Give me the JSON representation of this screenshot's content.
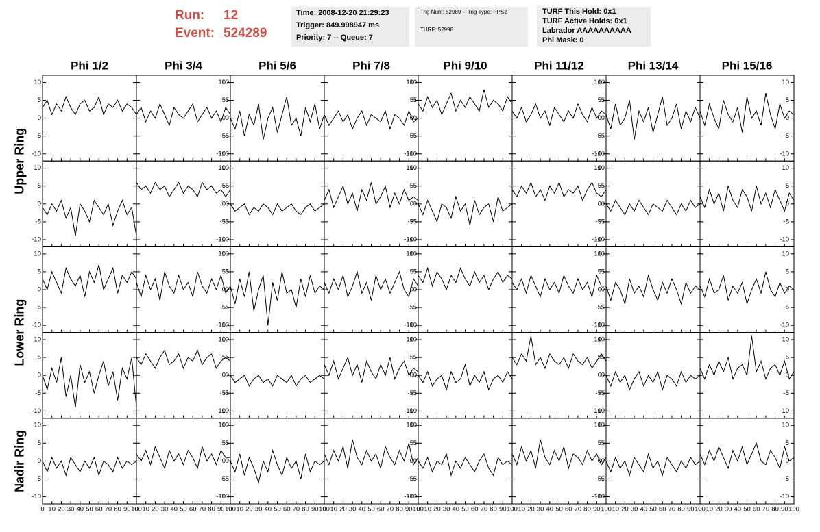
{
  "header": {
    "run_label": "Run:",
    "run": "12",
    "event_label": "Event:",
    "event": "524289",
    "box1": [
      "Time: 2008-12-20 21:29:23",
      "Trigger: 849.998947 ms",
      "Priority: 7 -- Queue: 7"
    ],
    "box2": [
      "Trig Num: 52989 -- Trig Type: PPS2",
      "TURF: 52998"
    ],
    "box3": [
      "TURF This Hold: 0x1",
      "TURF Active Holds: 0x1",
      "Labrador AAAAAAAAAA",
      "Phi Mask: 0"
    ]
  },
  "chart_data": {
    "type": "line",
    "columns": [
      "Phi 1/2",
      "Phi 3/4",
      "Phi 5/6",
      "Phi 7/8",
      "Phi 9/10",
      "Phi 11/12",
      "Phi 13/14",
      "Phi 15/16"
    ],
    "row_labels": [
      "Upper Ring",
      "Lower Ring",
      "Nadir Ring"
    ],
    "x": [
      0,
      5,
      10,
      15,
      20,
      25,
      30,
      35,
      40,
      45,
      50,
      55,
      60,
      65,
      70,
      75,
      80,
      85,
      90,
      95,
      100
    ],
    "xlim": [
      0,
      100
    ],
    "xticks": [
      0,
      10,
      20,
      30,
      40,
      50,
      60,
      70,
      80,
      90,
      100
    ],
    "ylim": [
      -12,
      12
    ],
    "yticks": [
      -10,
      -5,
      0,
      5,
      10
    ],
    "color": "#000000",
    "panels": [
      [
        3,
        5,
        1,
        4,
        2,
        6,
        3,
        1,
        4,
        5,
        2,
        3,
        6,
        1,
        4,
        3,
        5,
        2,
        4,
        3,
        1
      ],
      [
        1,
        3,
        -1,
        2,
        0,
        4,
        1,
        -2,
        3,
        1,
        0,
        2,
        4,
        -1,
        1,
        3,
        0,
        2,
        -1,
        3,
        1
      ],
      [
        0,
        -3,
        2,
        -5,
        1,
        -2,
        4,
        -6,
        0,
        3,
        -4,
        1,
        6,
        -2,
        0,
        -5,
        3,
        -1,
        4,
        -3,
        1
      ],
      [
        1,
        -2,
        0,
        2,
        -1,
        1,
        -3,
        0,
        2,
        -2,
        1,
        0,
        -1,
        2,
        -3,
        1,
        0,
        -2,
        2,
        -1,
        0
      ],
      [
        4,
        2,
        6,
        3,
        5,
        1,
        4,
        7,
        2,
        5,
        3,
        6,
        4,
        2,
        8,
        3,
        5,
        4,
        2,
        6,
        4
      ],
      [
        2,
        0,
        3,
        -1,
        1,
        4,
        0,
        2,
        -2,
        3,
        1,
        -1,
        2,
        0,
        4,
        1,
        -1,
        3,
        0,
        2,
        1
      ],
      [
        1,
        -3,
        4,
        -2,
        0,
        5,
        -6,
        2,
        -1,
        3,
        -4,
        1,
        6,
        -2,
        0,
        4,
        -3,
        2,
        -1,
        3,
        0
      ],
      [
        2,
        -2,
        4,
        0,
        -3,
        5,
        1,
        -1,
        3,
        -4,
        6,
        0,
        2,
        -2,
        7,
        1,
        -3,
        4,
        0,
        2,
        1
      ],
      [
        -1,
        -3,
        0,
        -2,
        1,
        -4,
        -1,
        -9,
        0,
        -2,
        -5,
        1,
        -1,
        -3,
        0,
        -6,
        -2,
        1,
        -3,
        -1,
        -9
      ],
      [
        6,
        4,
        5,
        3,
        6,
        4,
        5,
        2,
        4,
        6,
        3,
        5,
        4,
        2,
        6,
        4,
        5,
        3,
        4,
        2,
        4
      ],
      [
        0,
        -2,
        -1,
        0,
        -3,
        -1,
        -2,
        0,
        -1,
        -3,
        0,
        -2,
        -1,
        0,
        -2,
        -3,
        -1,
        0,
        -2,
        -1,
        0
      ],
      [
        1,
        4,
        -1,
        2,
        5,
        0,
        3,
        -2,
        4,
        1,
        6,
        0,
        2,
        5,
        -1,
        3,
        0,
        4,
        1,
        2,
        1
      ],
      [
        0,
        -3,
        1,
        -2,
        -5,
        0,
        -1,
        -4,
        2,
        -2,
        0,
        -6,
        1,
        -3,
        -1,
        0,
        -5,
        2,
        -2,
        -1,
        0
      ],
      [
        4,
        2,
        5,
        3,
        6,
        2,
        4,
        1,
        5,
        3,
        6,
        2,
        4,
        3,
        5,
        1,
        4,
        6,
        3,
        2,
        4
      ],
      [
        0,
        -2,
        1,
        -1,
        -3,
        0,
        -2,
        1,
        -1,
        -3,
        0,
        -1,
        -2,
        1,
        -1,
        -3,
        0,
        -2,
        1,
        -1,
        0
      ],
      [
        2,
        -1,
        4,
        0,
        3,
        -2,
        5,
        1,
        -1,
        4,
        2,
        -2,
        5,
        0,
        3,
        -1,
        4,
        1,
        -2,
        3,
        1
      ],
      [
        3,
        0,
        5,
        2,
        -1,
        6,
        3,
        1,
        4,
        -2,
        5,
        2,
        7,
        0,
        3,
        6,
        -1,
        4,
        2,
        5,
        3
      ],
      [
        2,
        -2,
        4,
        0,
        3,
        -3,
        5,
        1,
        -1,
        4,
        0,
        2,
        -2,
        5,
        1,
        -1,
        3,
        0,
        4,
        -1,
        1
      ],
      [
        1,
        -4,
        3,
        -2,
        5,
        -6,
        0,
        4,
        -10,
        2,
        -3,
        5,
        -1,
        0,
        -5,
        3,
        -2,
        4,
        -1,
        1,
        0
      ],
      [
        2,
        -1,
        3,
        0,
        4,
        -2,
        1,
        5,
        -1,
        2,
        -3,
        4,
        0,
        3,
        -1,
        2,
        5,
        0,
        -2,
        3,
        1
      ],
      [
        4,
        2,
        6,
        1,
        5,
        3,
        0,
        4,
        2,
        6,
        3,
        1,
        5,
        2,
        4,
        0,
        3,
        5,
        2,
        4,
        3
      ],
      [
        2,
        0,
        3,
        -1,
        4,
        1,
        -2,
        3,
        0,
        2,
        -1,
        4,
        1,
        -1,
        3,
        0,
        2,
        -2,
        4,
        1,
        1
      ],
      [
        1,
        -3,
        2,
        0,
        -4,
        3,
        -1,
        1,
        -2,
        4,
        0,
        -3,
        2,
        -1,
        3,
        0,
        -4,
        2,
        -1,
        1,
        0
      ],
      [
        1,
        -2,
        3,
        -1,
        0,
        4,
        -3,
        1,
        -1,
        2,
        -4,
        0,
        3,
        -1,
        5,
        0,
        -2,
        2,
        -1,
        1,
        0
      ],
      [
        0,
        -4,
        2,
        -2,
        5,
        -6,
        0,
        -9,
        3,
        -2,
        1,
        -5,
        0,
        4,
        -3,
        1,
        -7,
        2,
        -1,
        5,
        -9
      ],
      [
        5,
        3,
        6,
        4,
        2,
        5,
        7,
        3,
        4,
        6,
        2,
        5,
        4,
        7,
        3,
        5,
        6,
        2,
        4,
        5,
        4
      ],
      [
        0,
        -2,
        -1,
        0,
        -3,
        -1,
        0,
        -2,
        -1,
        -3,
        0,
        -1,
        -2,
        0,
        -3,
        -1,
        0,
        -2,
        -1,
        0,
        -1
      ],
      [
        3,
        0,
        4,
        -1,
        2,
        5,
        0,
        3,
        -2,
        4,
        1,
        -1,
        3,
        0,
        5,
        -1,
        2,
        4,
        0,
        2,
        1
      ],
      [
        0,
        -2,
        1,
        -3,
        -1,
        0,
        -4,
        1,
        -2,
        -1,
        3,
        -3,
        0,
        -2,
        1,
        -4,
        -1,
        0,
        -2,
        1,
        -1
      ],
      [
        5,
        3,
        6,
        4,
        11,
        3,
        5,
        2,
        6,
        4,
        3,
        5,
        2,
        6,
        4,
        3,
        5,
        2,
        4,
        6,
        4
      ],
      [
        0,
        -3,
        1,
        -2,
        0,
        -4,
        -1,
        1,
        -3,
        0,
        -2,
        1,
        -4,
        0,
        -1,
        -3,
        1,
        -2,
        0,
        -1,
        0
      ],
      [
        2,
        -1,
        3,
        0,
        4,
        1,
        5,
        -1,
        2,
        3,
        0,
        11,
        1,
        4,
        -1,
        2,
        3,
        0,
        4,
        -1,
        1
      ],
      [
        0,
        -3,
        1,
        -2,
        0,
        -4,
        1,
        -1,
        -3,
        0,
        -2,
        1,
        -4,
        0,
        -1,
        -3,
        1,
        -2,
        0,
        -1,
        0
      ],
      [
        2,
        0,
        3,
        -1,
        4,
        1,
        -2,
        3,
        0,
        2,
        -1,
        3,
        1,
        -2,
        4,
        0,
        2,
        -1,
        3,
        1,
        1
      ],
      [
        0,
        -3,
        2,
        -4,
        1,
        -2,
        -6,
        0,
        -3,
        3,
        -1,
        -4,
        1,
        -2,
        0,
        -5,
        2,
        -3,
        0,
        -1,
        0
      ],
      [
        2,
        -1,
        3,
        0,
        4,
        -2,
        6,
        1,
        -1,
        3,
        0,
        2,
        -2,
        4,
        1,
        -1,
        3,
        0,
        5,
        -1,
        1
      ],
      [
        0,
        -2,
        1,
        -3,
        0,
        -1,
        2,
        -4,
        0,
        -2,
        1,
        -1,
        -3,
        0,
        2,
        -2,
        -4,
        1,
        -1,
        0,
        -1
      ],
      [
        2,
        -1,
        4,
        0,
        3,
        -2,
        6,
        1,
        -1,
        3,
        0,
        4,
        -2,
        2,
        1,
        -1,
        3,
        0,
        2,
        -1,
        1
      ],
      [
        0,
        -3,
        1,
        -2,
        0,
        -4,
        1,
        -1,
        -3,
        2,
        -2,
        0,
        -4,
        1,
        -1,
        -3,
        0,
        -2,
        1,
        -1,
        0
      ],
      [
        2,
        -1,
        3,
        0,
        4,
        1,
        -2,
        3,
        0,
        4,
        -1,
        2,
        5,
        0,
        -1,
        3,
        1,
        -2,
        4,
        0,
        1
      ]
    ]
  }
}
